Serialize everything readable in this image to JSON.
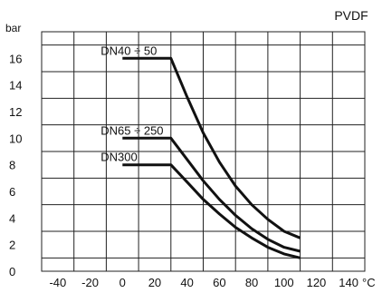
{
  "chart_data": {
    "type": "line",
    "title": "PVDF",
    "ylabel": "bar",
    "xunit": "°C",
    "xlim": [
      -50,
      150
    ],
    "ylim": [
      0,
      18
    ],
    "xticks": [
      -40,
      -20,
      0,
      20,
      40,
      60,
      80,
      100,
      120,
      140
    ],
    "yticks": [
      0,
      2,
      4,
      6,
      8,
      10,
      12,
      14,
      16
    ],
    "grid": true,
    "series": [
      {
        "name": "DN40 ÷ 50",
        "x": [
          0,
          30,
          40,
          50,
          60,
          70,
          80,
          90,
          100,
          110
        ],
        "y": [
          16,
          16,
          13.1,
          10.4,
          8.2,
          6.4,
          5.0,
          3.9,
          3.0,
          2.5
        ]
      },
      {
        "name": "DN65 ÷ 250",
        "x": [
          0,
          30,
          40,
          50,
          60,
          70,
          80,
          90,
          100,
          110
        ],
        "y": [
          10,
          10,
          8.4,
          6.8,
          5.4,
          4.2,
          3.2,
          2.4,
          1.8,
          1.5
        ]
      },
      {
        "name": "DN300",
        "x": [
          0,
          30,
          40,
          50,
          60,
          70,
          80,
          90,
          100,
          110
        ],
        "y": [
          8,
          8,
          6.7,
          5.4,
          4.3,
          3.3,
          2.5,
          1.8,
          1.3,
          1.0
        ]
      }
    ]
  }
}
